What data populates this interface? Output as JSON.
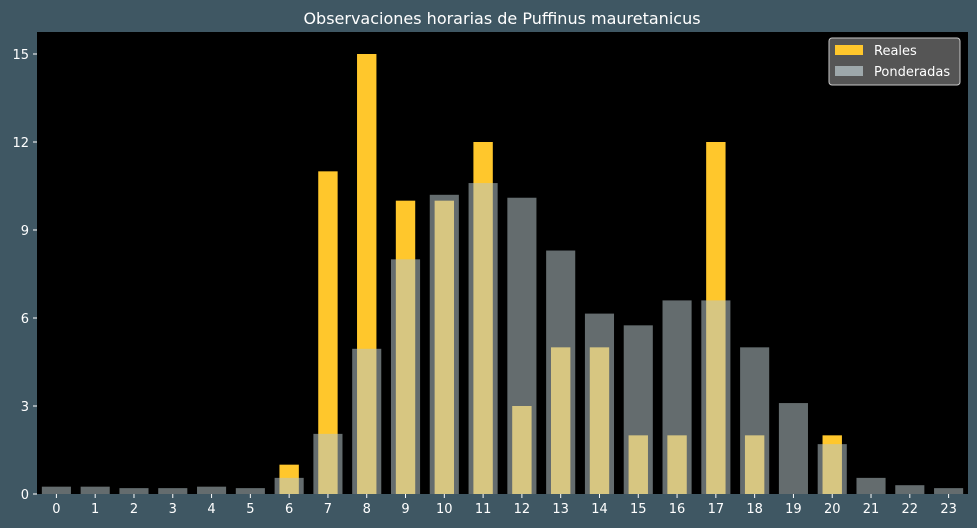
{
  "chart_data": {
    "type": "bar",
    "title": "Observaciones horarias de Puffinus mauretanicus",
    "xlabel": "",
    "ylabel": "",
    "categories": [
      "0",
      "1",
      "2",
      "3",
      "4",
      "5",
      "6",
      "7",
      "8",
      "9",
      "10",
      "11",
      "12",
      "13",
      "14",
      "15",
      "16",
      "17",
      "18",
      "19",
      "20",
      "21",
      "22",
      "23"
    ],
    "series": [
      {
        "name": "Reales",
        "color": "#ffc72c",
        "values": [
          0,
          0,
          0,
          0,
          0,
          0,
          1,
          11,
          15,
          10,
          10,
          12,
          3,
          5,
          5,
          2,
          2,
          12,
          2,
          0,
          2,
          0,
          0,
          0
        ]
      },
      {
        "name": "Ponderadas",
        "color": "#b7c4c8",
        "values": [
          0.25,
          0.25,
          0.2,
          0.2,
          0.25,
          0.2,
          0.55,
          2.05,
          4.95,
          8.0,
          10.2,
          10.6,
          10.1,
          8.3,
          6.15,
          5.75,
          6.6,
          6.6,
          5.0,
          3.1,
          1.7,
          0.55,
          0.3,
          0.2
        ]
      }
    ],
    "ylim": [
      0,
      15.75
    ],
    "yticks": [
      0,
      3,
      6,
      9,
      12,
      15
    ],
    "legend_position": "top-right",
    "grid": false
  },
  "colors": {
    "background": "#3f5763",
    "plot_background": "#000000",
    "text": "#ffffff",
    "legend_background": "#555555",
    "legend_border": "#c8c8c8"
  }
}
